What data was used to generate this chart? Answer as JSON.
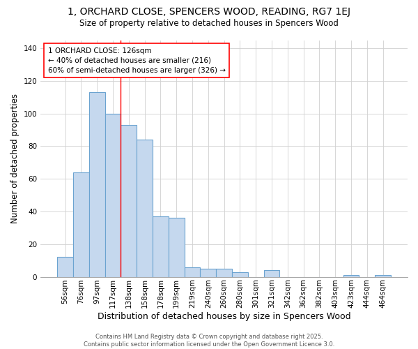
{
  "title_line1": "1, ORCHARD CLOSE, SPENCERS WOOD, READING, RG7 1EJ",
  "title_line2": "Size of property relative to detached houses in Spencers Wood",
  "xlabel": "Distribution of detached houses by size in Spencers Wood",
  "ylabel": "Number of detached properties",
  "categories": [
    "56sqm",
    "76sqm",
    "97sqm",
    "117sqm",
    "138sqm",
    "158sqm",
    "178sqm",
    "199sqm",
    "219sqm",
    "240sqm",
    "260sqm",
    "280sqm",
    "301sqm",
    "321sqm",
    "342sqm",
    "362sqm",
    "382sqm",
    "403sqm",
    "423sqm",
    "444sqm",
    "464sqm"
  ],
  "values": [
    12,
    64,
    113,
    100,
    93,
    84,
    37,
    36,
    6,
    5,
    5,
    3,
    0,
    4,
    0,
    0,
    0,
    0,
    1,
    0,
    1
  ],
  "bar_color": "#c5d8ee",
  "bar_edge_color": "#6ba3d0",
  "bg_color": "#ffffff",
  "plot_bg_color": "#ffffff",
  "red_line_x": 3.5,
  "annotation_text": "1 ORCHARD CLOSE: 126sqm\n← 40% of detached houses are smaller (216)\n60% of semi-detached houses are larger (326) →",
  "annotation_box_color": "white",
  "annotation_box_edge": "red",
  "ylim": [
    0,
    145
  ],
  "footer": "Contains HM Land Registry data © Crown copyright and database right 2025.\nContains public sector information licensed under the Open Government Licence 3.0.",
  "title_fontsize": 10,
  "subtitle_fontsize": 8.5,
  "xlabel_fontsize": 9,
  "ylabel_fontsize": 8.5,
  "tick_fontsize": 7.5,
  "footer_fontsize": 6,
  "annotation_fontsize": 7.5
}
